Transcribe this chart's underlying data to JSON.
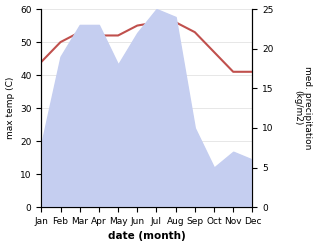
{
  "months": [
    "Jan",
    "Feb",
    "Mar",
    "Apr",
    "May",
    "Jun",
    "Jul",
    "Aug",
    "Sep",
    "Oct",
    "Nov",
    "Dec"
  ],
  "month_positions": [
    0,
    1,
    2,
    3,
    4,
    5,
    6,
    7,
    8,
    9,
    10,
    11
  ],
  "temperature": [
    44,
    50,
    53,
    52,
    52,
    55,
    56,
    56,
    53,
    47,
    41,
    41
  ],
  "precipitation": [
    8,
    19,
    23,
    23,
    18,
    22,
    25,
    24,
    10,
    5,
    7,
    6
  ],
  "temp_color": "#c0504d",
  "precip_fill_color": "#c5cef0",
  "xlabel": "date (month)",
  "ylabel_left": "max temp (C)",
  "ylabel_right": "med. precipitation\n(kg/m2)",
  "ylim_left": [
    0,
    60
  ],
  "ylim_right": [
    0,
    25
  ],
  "yticks_left": [
    0,
    10,
    20,
    30,
    40,
    50,
    60
  ],
  "yticks_right": [
    0,
    5,
    10,
    15,
    20,
    25
  ],
  "bg_color": "#ffffff",
  "line_width": 1.5
}
